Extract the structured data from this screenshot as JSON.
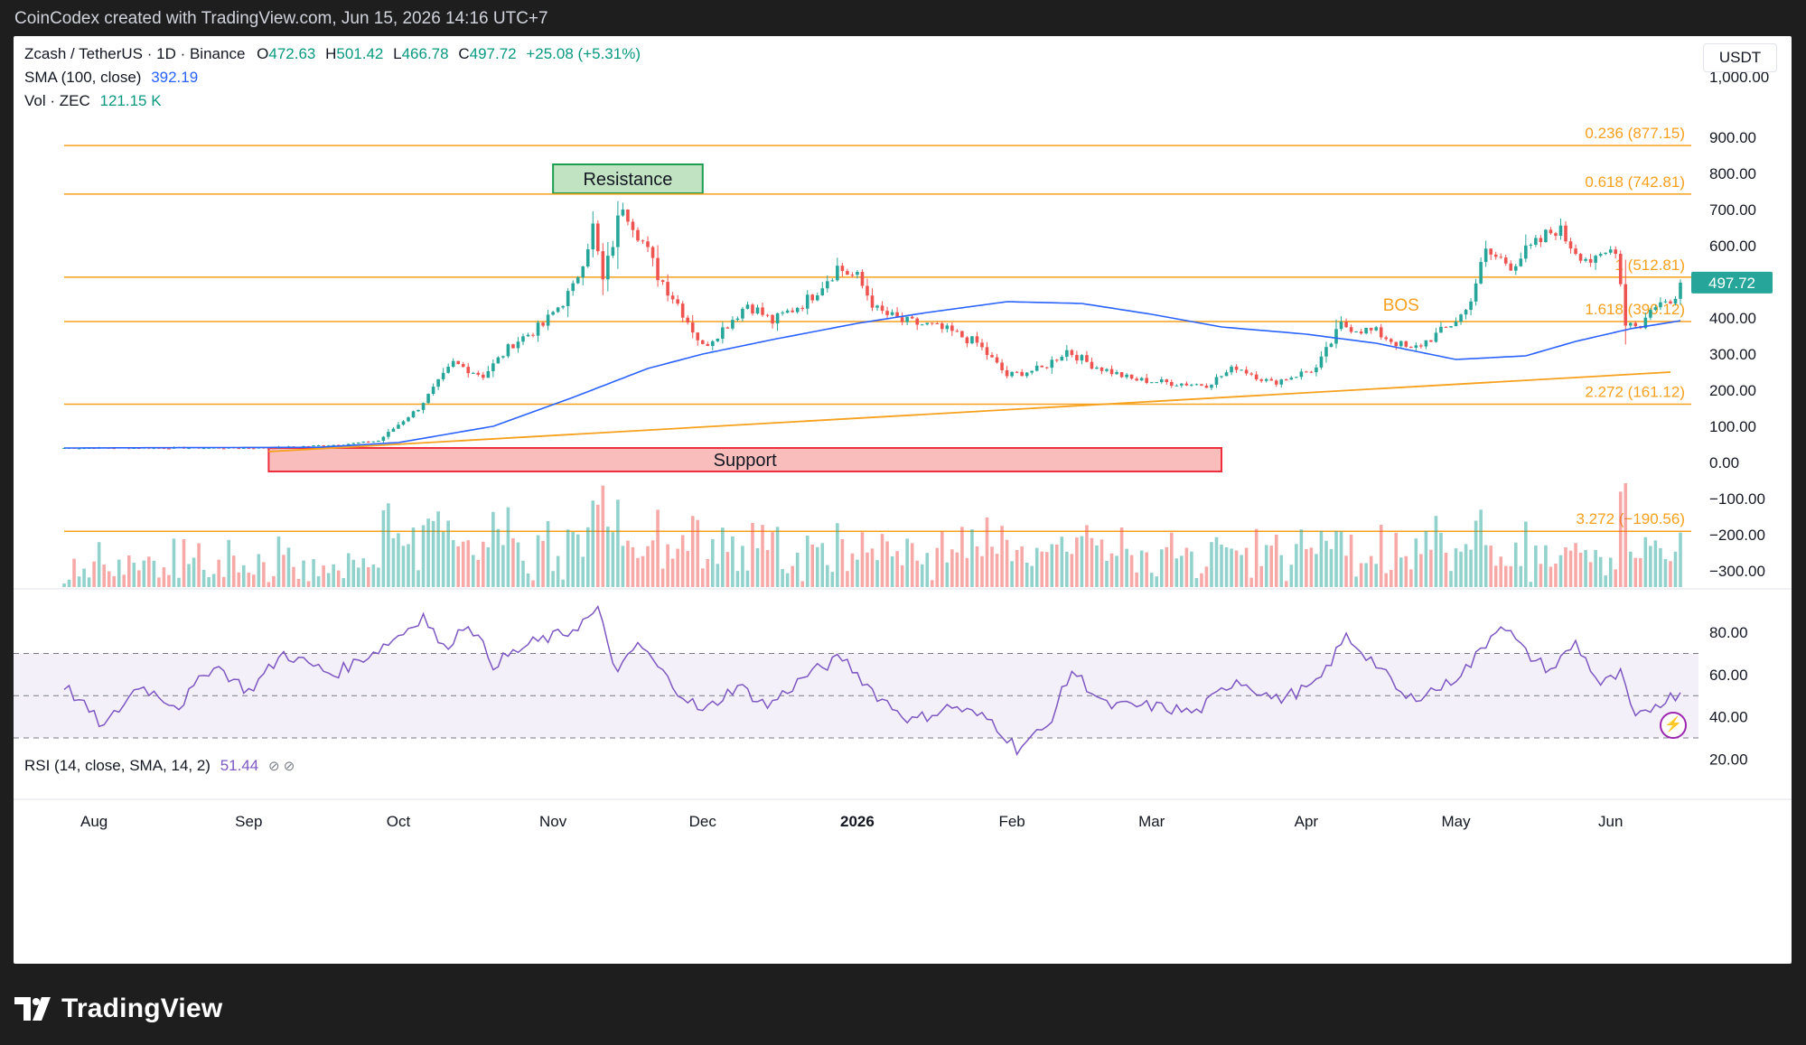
{
  "header": {
    "title": "CoinCodex created with TradingView.com, Jun 15, 2026 14:16 UTC+7"
  },
  "legend": {
    "symbol": "Zcash / TetherUS · 1D · Binance",
    "open_label": "O",
    "open": "472.63",
    "high_label": "H",
    "high": "501.42",
    "low_label": "L",
    "low": "466.78",
    "close_label": "C",
    "close": "497.72",
    "change": "+25.08 (+5.31%)",
    "sma_label": "SMA (100, close)",
    "sma_value": "392.19",
    "vol_label": "Vol · ZEC",
    "vol_value": "121.15 K",
    "rsi_label": "RSI (14, close, SMA, 14, 2)",
    "rsi_value": "51.44",
    "eye_icons": "⊘ ⊘"
  },
  "currency_button": "USDT",
  "footer": {
    "brand": "TradingView"
  },
  "colors": {
    "up": "#26a69a",
    "down": "#ef5350",
    "sma": "#2962ff",
    "fib": "#f7a01d",
    "rsi": "#7e57c2",
    "bg": "#ffffff",
    "frame": "#1e1e1e"
  },
  "chart_data": {
    "type": "candlestick",
    "price_axis": {
      "ylim": [
        -350,
        1000
      ],
      "ticks": [
        900,
        800,
        700,
        600,
        500,
        400,
        300,
        200,
        100,
        0,
        -100,
        -200,
        -300
      ],
      "tick_labels": [
        "900.00",
        "800.00",
        "700.00",
        "600.00",
        "500.00",
        "400.00",
        "300.00",
        "200.00",
        "100.00",
        "0.00",
        "−100.00",
        "−200.00",
        "−300.00"
      ],
      "top_partial_label": "1,000.00"
    },
    "time_axis": {
      "start": "2025-07-26",
      "end": "2026-06-15",
      "labels": [
        {
          "text": "Aug",
          "date": "2025-08-01"
        },
        {
          "text": "Sep",
          "date": "2025-09-01"
        },
        {
          "text": "Oct",
          "date": "2025-10-01"
        },
        {
          "text": "Nov",
          "date": "2025-11-01"
        },
        {
          "text": "Dec",
          "date": "2025-12-01"
        },
        {
          "text": "2026",
          "date": "2026-01-01"
        },
        {
          "text": "Feb",
          "date": "2026-02-01"
        },
        {
          "text": "Mar",
          "date": "2026-03-01"
        },
        {
          "text": "Apr",
          "date": "2026-04-01"
        },
        {
          "text": "May",
          "date": "2026-05-01"
        },
        {
          "text": "Jun",
          "date": "2026-06-01"
        }
      ]
    },
    "price_path": [
      [
        "2025-07-26",
        40
      ],
      [
        "2025-09-05",
        40
      ],
      [
        "2025-09-20",
        50
      ],
      [
        "2025-09-27",
        60
      ],
      [
        "2025-10-05",
        150
      ],
      [
        "2025-10-12",
        275
      ],
      [
        "2025-10-18",
        240
      ],
      [
        "2025-10-24",
        330
      ],
      [
        "2025-10-30",
        380
      ],
      [
        "2025-11-05",
        480
      ],
      [
        "2025-11-09",
        650
      ],
      [
        "2025-11-11",
        500
      ],
      [
        "2025-11-15",
        720
      ],
      [
        "2025-11-18",
        640
      ],
      [
        "2025-11-22",
        520
      ],
      [
        "2025-11-26",
        440
      ],
      [
        "2025-12-01",
        320
      ],
      [
        "2025-12-05",
        370
      ],
      [
        "2025-12-10",
        440
      ],
      [
        "2025-12-15",
        390
      ],
      [
        "2025-12-22",
        450
      ],
      [
        "2025-12-28",
        540
      ],
      [
        "2026-01-01",
        510
      ],
      [
        "2026-01-05",
        420
      ],
      [
        "2026-01-10",
        390
      ],
      [
        "2026-01-15",
        380
      ],
      [
        "2026-01-20",
        360
      ],
      [
        "2026-01-25",
        330
      ],
      [
        "2026-01-31",
        240
      ],
      [
        "2026-02-07",
        260
      ],
      [
        "2026-02-12",
        310
      ],
      [
        "2026-02-17",
        270
      ],
      [
        "2026-02-25",
        230
      ],
      [
        "2026-03-05",
        220
      ],
      [
        "2026-03-12",
        215
      ],
      [
        "2026-03-18",
        265
      ],
      [
        "2026-03-25",
        220
      ],
      [
        "2026-04-03",
        260
      ],
      [
        "2026-04-08",
        380
      ],
      [
        "2026-04-15",
        360
      ],
      [
        "2026-04-22",
        310
      ],
      [
        "2026-04-29",
        370
      ],
      [
        "2026-05-03",
        420
      ],
      [
        "2026-05-07",
        580
      ],
      [
        "2026-05-12",
        550
      ],
      [
        "2026-05-17",
        600
      ],
      [
        "2026-05-21",
        650
      ],
      [
        "2026-05-25",
        590
      ],
      [
        "2026-05-29",
        550
      ],
      [
        "2026-06-02",
        600
      ],
      [
        "2026-06-04",
        390
      ],
      [
        "2026-06-07",
        380
      ],
      [
        "2026-06-10",
        440
      ],
      [
        "2026-06-13",
        440
      ],
      [
        "2026-06-15",
        497.72
      ]
    ],
    "sma_path": [
      [
        "2025-07-26",
        40
      ],
      [
        "2025-09-15",
        42
      ],
      [
        "2025-10-01",
        55
      ],
      [
        "2025-10-20",
        100
      ],
      [
        "2025-11-05",
        180
      ],
      [
        "2025-11-20",
        260
      ],
      [
        "2025-12-01",
        300
      ],
      [
        "2025-12-15",
        340
      ],
      [
        "2026-01-01",
        385
      ],
      [
        "2026-01-15",
        415
      ],
      [
        "2026-01-31",
        445
      ],
      [
        "2026-02-15",
        440
      ],
      [
        "2026-03-01",
        410
      ],
      [
        "2026-03-15",
        375
      ],
      [
        "2026-04-01",
        355
      ],
      [
        "2026-04-15",
        330
      ],
      [
        "2026-05-01",
        285
      ],
      [
        "2026-05-15",
        295
      ],
      [
        "2026-05-25",
        335
      ],
      [
        "2026-06-05",
        370
      ],
      [
        "2026-06-15",
        392.19
      ]
    ],
    "fib_levels": [
      {
        "price": 877.15,
        "label": "0.236 (877.15)"
      },
      {
        "price": 742.81,
        "label": "0.618 (742.81)"
      },
      {
        "price": 512.81,
        "label": "1 (512.81)"
      },
      {
        "price": 390.12,
        "label": "1.618 (390.12)"
      },
      {
        "price": 161.12,
        "label": "2.272 (161.12)"
      },
      {
        "price": -190.56,
        "label": "3.272 (−190.56)"
      }
    ],
    "trendline": {
      "from": [
        "2025-09-05",
        30
      ],
      "to": [
        "2026-06-13",
        250
      ]
    },
    "annotations": {
      "resistance": {
        "text": "Resistance",
        "from": "2025-11-01",
        "to": "2025-12-01",
        "price_low": 745,
        "price_high": 825
      },
      "support": {
        "text": "Support",
        "from": "2025-09-05",
        "to": "2026-03-15",
        "price_low": -25,
        "price_high": 40
      },
      "bos": {
        "text": "BOS",
        "from": "2026-04-09",
        "to": "2026-05-01",
        "price": 390
      }
    },
    "last_price": {
      "value": 497.72,
      "label": "497.72"
    },
    "rsi": {
      "ylim": [
        15,
        95
      ],
      "ticks": [
        80,
        60,
        40,
        20
      ],
      "tick_labels": [
        "80.00",
        "60.00",
        "40.00",
        "20.00"
      ],
      "bands": [
        70,
        50,
        30
      ],
      "path": [
        [
          "2025-07-26",
          55
        ],
        [
          "2025-08-03",
          35
        ],
        [
          "2025-08-10",
          55
        ],
        [
          "2025-08-18",
          45
        ],
        [
          "2025-08-25",
          65
        ],
        [
          "2025-09-01",
          52
        ],
        [
          "2025-09-08",
          70
        ],
        [
          "2025-09-18",
          60
        ],
        [
          "2025-09-27",
          72
        ],
        [
          "2025-10-02",
          80
        ],
        [
          "2025-10-06",
          88
        ],
        [
          "2025-10-10",
          72
        ],
        [
          "2025-10-15",
          85
        ],
        [
          "2025-10-20",
          65
        ],
        [
          "2025-10-28",
          75
        ],
        [
          "2025-11-04",
          80
        ],
        [
          "2025-11-10",
          90
        ],
        [
          "2025-11-14",
          60
        ],
        [
          "2025-11-18",
          75
        ],
        [
          "2025-11-25",
          55
        ],
        [
          "2025-12-01",
          42
        ],
        [
          "2025-12-08",
          55
        ],
        [
          "2025-12-14",
          45
        ],
        [
          "2025-12-22",
          60
        ],
        [
          "2025-12-29",
          68
        ],
        [
          "2026-01-05",
          50
        ],
        [
          "2026-01-12",
          38
        ],
        [
          "2026-01-20",
          45
        ],
        [
          "2026-01-28",
          38
        ],
        [
          "2026-02-02",
          25
        ],
        [
          "2026-02-08",
          35
        ],
        [
          "2026-02-13",
          62
        ],
        [
          "2026-02-20",
          45
        ],
        [
          "2026-03-01",
          45
        ],
        [
          "2026-03-10",
          42
        ],
        [
          "2026-03-18",
          58
        ],
        [
          "2026-03-26",
          48
        ],
        [
          "2026-04-03",
          55
        ],
        [
          "2026-04-09",
          78
        ],
        [
          "2026-04-15",
          65
        ],
        [
          "2026-04-21",
          48
        ],
        [
          "2026-04-29",
          55
        ],
        [
          "2026-05-04",
          65
        ],
        [
          "2026-05-10",
          85
        ],
        [
          "2026-05-15",
          70
        ],
        [
          "2026-05-20",
          62
        ],
        [
          "2026-05-25",
          75
        ],
        [
          "2026-05-30",
          55
        ],
        [
          "2026-06-03",
          60
        ],
        [
          "2026-06-06",
          38
        ],
        [
          "2026-06-10",
          46
        ],
        [
          "2026-06-15",
          51.44
        ]
      ]
    }
  }
}
